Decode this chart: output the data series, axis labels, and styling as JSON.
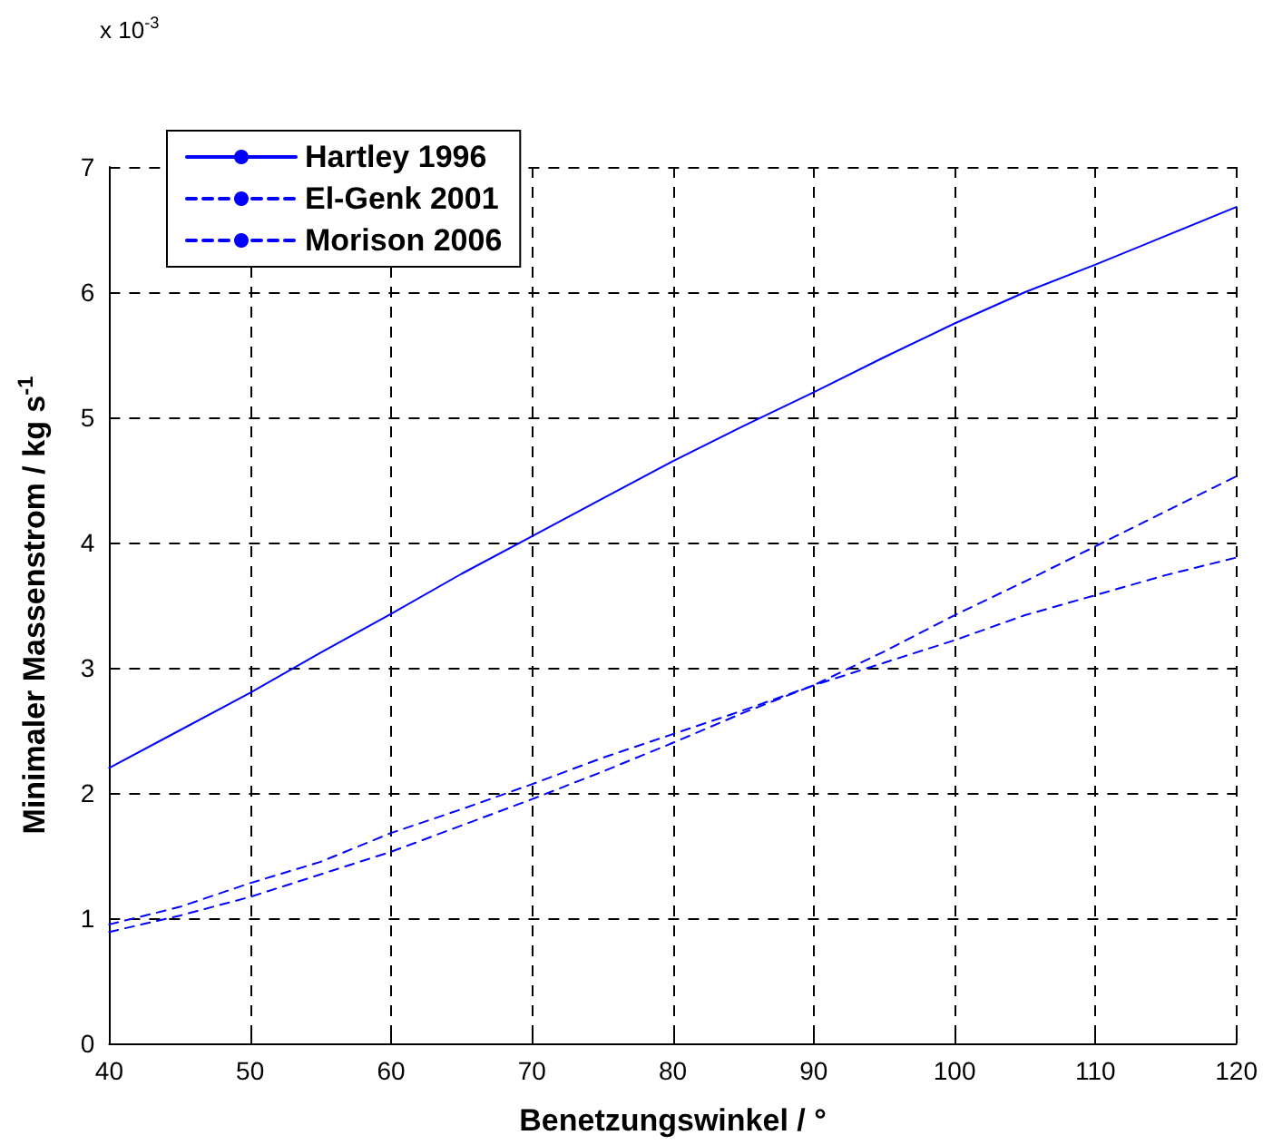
{
  "chart_data": {
    "type": "line",
    "xlabel": "Benetzungswinkel / °",
    "ylabel": "Minimaler Massenstrom / kg s$^{-1}$",
    "annotations": [
      "x 10$^{-3}$"
    ],
    "x": [
      40,
      45,
      50,
      55,
      60,
      65,
      70,
      75,
      80,
      85,
      90,
      95,
      100,
      105,
      110,
      115,
      120
    ],
    "xlim": [
      40,
      120
    ],
    "xticks": [
      40,
      50,
      60,
      70,
      80,
      90,
      100,
      110,
      120
    ],
    "ylim": [
      0,
      7
    ],
    "yticks": [
      0,
      1,
      2,
      3,
      4,
      5,
      6,
      7
    ],
    "grid": true,
    "legend": "top left",
    "marker": "none",
    "series": [
      {
        "name": "Hartley 1996",
        "color": "#0000ff",
        "line_style": "solid",
        "values": [
          2.2,
          2.5,
          2.8,
          3.12,
          3.43,
          3.75,
          4.05,
          4.35,
          4.65,
          4.93,
          5.2,
          5.48,
          5.75,
          6.0,
          6.22,
          6.45,
          6.68
        ]
      },
      {
        "name": "El-Genk 2001",
        "color": "#0000ff",
        "line_style": "dashed",
        "values": [
          0.89,
          1.02,
          1.17,
          1.35,
          1.53,
          1.74,
          1.95,
          2.17,
          2.4,
          2.64,
          2.86,
          3.13,
          3.42,
          3.69,
          3.97,
          4.25,
          4.53
        ]
      },
      {
        "name": "Morison 2006",
        "color": "#0000ff",
        "line_style": "dashed",
        "values": [
          0.95,
          1.09,
          1.28,
          1.45,
          1.68,
          1.87,
          2.07,
          2.28,
          2.47,
          2.66,
          2.86,
          3.04,
          3.22,
          3.42,
          3.58,
          3.74,
          3.88
        ]
      }
    ]
  }
}
